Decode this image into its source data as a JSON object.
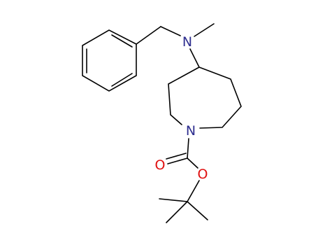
{
  "atoms": [
    {
      "label": "N"
    },
    {
      "label": "N"
    },
    {
      "label": "O"
    },
    {
      "label": "O"
    }
  ]
}
